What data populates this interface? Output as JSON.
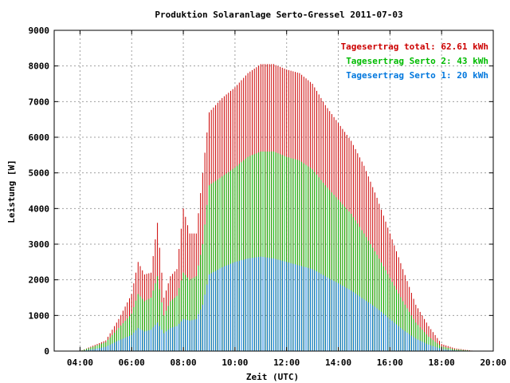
{
  "chart_data": {
    "type": "bar",
    "title": "Produktion Solaranlage Serto-Gressel 2011-07-03",
    "xlabel": "Zeit (UTC)",
    "ylabel": "Leistung [W]",
    "x_unit": "hours UTC",
    "xlim": [
      3.0,
      20.0
    ],
    "ylim": [
      0,
      9000
    ],
    "x_tick_values": [
      4,
      6,
      8,
      10,
      12,
      14,
      16,
      18,
      20
    ],
    "x_tick_labels": [
      "04:00",
      "06:00",
      "08:00",
      "10:00",
      "12:00",
      "14:00",
      "16:00",
      "18:00",
      "20:00"
    ],
    "y_tick_values": [
      0,
      1000,
      2000,
      3000,
      4000,
      5000,
      6000,
      7000,
      8000,
      9000
    ],
    "y_tick_labels": [
      "0",
      "1000",
      "2000",
      "3000",
      "4000",
      "5000",
      "6000",
      "7000",
      "8000",
      "9000"
    ],
    "grid": true,
    "legend_position": "top-right",
    "legend": [
      {
        "text": "Tagesertrag total: 62.61 kWh",
        "color": "#cc0000"
      },
      {
        "text": "Tagesertrag Serto 2: 43 kWh",
        "color": "#00bb00"
      },
      {
        "text": "Tagesertrag Serto 1: 20 kWh",
        "color": "#0077dd"
      }
    ],
    "series": [
      {
        "color": "#cc0000",
        "role": "total",
        "x": [
          4.0,
          4.5,
          5.0,
          5.5,
          6.0,
          6.25,
          6.5,
          6.75,
          7.0,
          7.25,
          7.5,
          7.75,
          8.0,
          8.25,
          8.5,
          8.75,
          9.0,
          9.5,
          10.0,
          10.5,
          11.0,
          11.5,
          12.0,
          12.5,
          13.0,
          13.5,
          14.0,
          14.5,
          15.0,
          15.5,
          16.0,
          16.5,
          17.0,
          17.5,
          18.0,
          18.5,
          19.0,
          19.3
        ],
        "values": [
          0,
          150,
          300,
          900,
          1600,
          2500,
          2150,
          2200,
          3600,
          1500,
          2100,
          2300,
          4000,
          3300,
          3300,
          5000,
          6700,
          7100,
          7400,
          7800,
          8050,
          8050,
          7900,
          7800,
          7500,
          6900,
          6400,
          5900,
          5200,
          4300,
          3300,
          2300,
          1300,
          700,
          200,
          80,
          30,
          0
        ]
      },
      {
        "color": "#00bb00",
        "role": "serto2",
        "x": [
          4.0,
          4.5,
          5.0,
          5.5,
          6.0,
          6.25,
          6.5,
          6.75,
          7.0,
          7.25,
          7.5,
          7.75,
          8.0,
          8.25,
          8.5,
          8.75,
          9.0,
          9.5,
          10.0,
          10.5,
          11.0,
          11.5,
          12.0,
          12.5,
          13.0,
          13.5,
          14.0,
          14.5,
          15.0,
          15.5,
          16.0,
          16.5,
          17.0,
          17.5,
          18.0,
          18.5,
          19.0,
          19.3
        ],
        "values": [
          0,
          120,
          250,
          650,
          1050,
          1600,
          1400,
          1500,
          2100,
          1000,
          1400,
          1550,
          2200,
          2000,
          2100,
          3000,
          4650,
          4900,
          5150,
          5450,
          5600,
          5600,
          5450,
          5350,
          5100,
          4650,
          4250,
          3850,
          3300,
          2700,
          2050,
          1400,
          800,
          400,
          130,
          50,
          20,
          0
        ]
      },
      {
        "color": "#0077dd",
        "role": "serto1",
        "x": [
          4.0,
          4.5,
          5.0,
          5.5,
          6.0,
          6.25,
          6.5,
          6.75,
          7.0,
          7.25,
          7.5,
          7.75,
          8.0,
          8.25,
          8.5,
          8.75,
          9.0,
          9.5,
          10.0,
          10.5,
          11.0,
          11.5,
          12.0,
          12.5,
          13.0,
          13.5,
          14.0,
          14.5,
          15.0,
          15.5,
          16.0,
          16.5,
          17.0,
          17.5,
          18.0,
          18.5,
          19.0,
          19.3
        ],
        "values": [
          0,
          50,
          120,
          300,
          450,
          650,
          550,
          600,
          800,
          500,
          650,
          700,
          900,
          850,
          900,
          1300,
          2150,
          2350,
          2500,
          2600,
          2650,
          2600,
          2500,
          2400,
          2300,
          2100,
          1900,
          1700,
          1450,
          1200,
          900,
          600,
          350,
          180,
          60,
          20,
          5,
          0
        ]
      }
    ]
  }
}
